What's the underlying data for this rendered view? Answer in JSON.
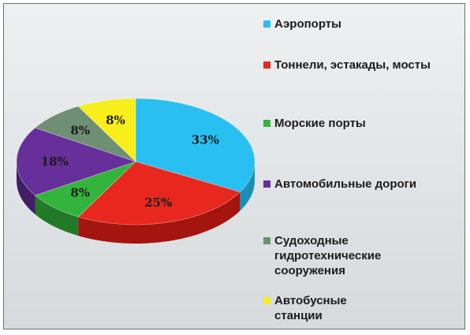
{
  "chart_data": {
    "type": "pie",
    "title": "",
    "slices": [
      {
        "label": "Аэропорты",
        "value": 33,
        "value_label": "33%",
        "color": "#29bff0",
        "side": "#1a8fb6"
      },
      {
        "label": "Тоннели, эстакады, мосты",
        "value": 25,
        "value_label": "25%",
        "color": "#e8271f",
        "side": "#a4150f"
      },
      {
        "label": "Морские порты",
        "value": 8,
        "value_label": "8%",
        "color": "#33b43c",
        "side": "#217a27"
      },
      {
        "label": "Автомобильные дороги",
        "value": 18,
        "value_label": "18%",
        "color": "#662f9a",
        "side": "#431d66"
      },
      {
        "label": "Судоходные гидротехнические сооружения",
        "value": 8,
        "value_label": "8%",
        "color": "#6e8f73",
        "side": "#4b6550"
      },
      {
        "label": "Автобусные станции",
        "value": 8,
        "value_label": "8%",
        "color": "#f7ee1c",
        "side": "#bdb30e"
      }
    ],
    "legend_position": "right",
    "style": "3d"
  },
  "legend": {
    "items": [
      {
        "label": "Аэропорты"
      },
      {
        "label": "Тоннели, эстакады, мосты"
      },
      {
        "label": "Морские порты"
      },
      {
        "label": "Автомобильные дороги"
      },
      {
        "label": "Судоходные гидротехнические сооружения"
      },
      {
        "label": "Автобусные станции"
      }
    ]
  }
}
